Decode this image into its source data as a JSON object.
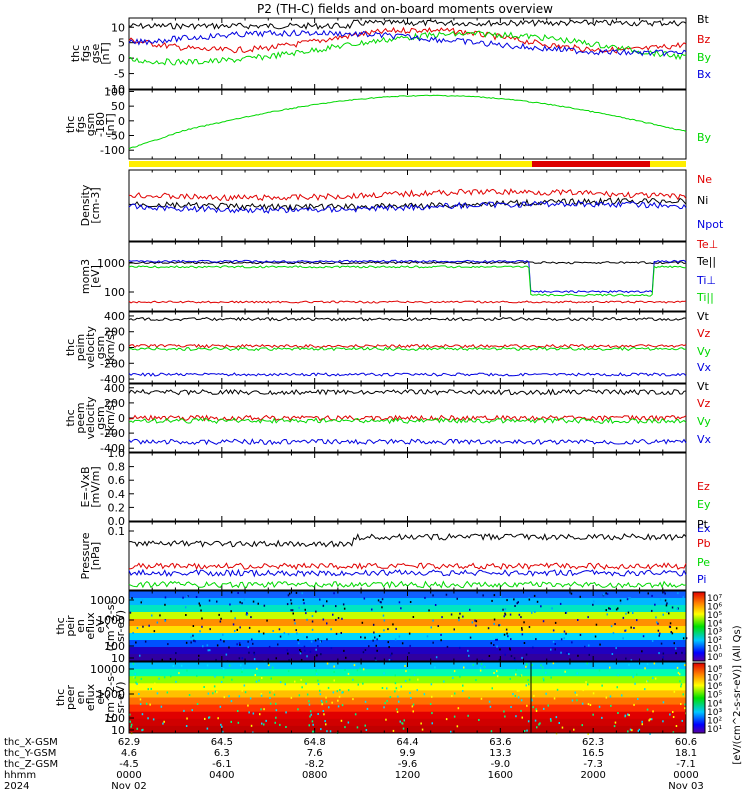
{
  "title": "P2 (TH-C) fields and on-board moments overview",
  "colors": {
    "black": "#000000",
    "red": "#e00000",
    "green": "#00d800",
    "blue": "#0000e0",
    "yellow": "#ffee00",
    "barred": "#dd0000"
  },
  "chart_data": [
    {
      "type": "line",
      "id": "fgs",
      "ylabel": [
        "thc",
        "fgs",
        "gse",
        "[nT]"
      ],
      "ylim": [
        -10,
        13
      ],
      "yticks": [
        10,
        5,
        0,
        -5,
        -10
      ],
      "series": [
        {
          "name": "Bt",
          "color": "black"
        },
        {
          "name": "Bz",
          "color": "red"
        },
        {
          "name": "By",
          "color": "green"
        },
        {
          "name": "Bx",
          "color": "blue"
        }
      ]
    },
    {
      "type": "line",
      "id": "fgs-gsm",
      "ylabel": [
        "thc",
        "fgs",
        "gsm",
        "-180",
        "[nT]"
      ],
      "ylim": [
        -130,
        105
      ],
      "yticks": [
        100,
        50,
        0,
        -50,
        -100
      ],
      "series": [
        {
          "name": "By",
          "color": "green"
        }
      ]
    },
    {
      "type": "line",
      "id": "density",
      "ylabel": [
        "Density",
        "[cm-3]"
      ],
      "series": [
        {
          "name": "Ne",
          "color": "red"
        },
        {
          "name": "Ni",
          "color": "black"
        },
        {
          "name": "Npot",
          "color": "blue"
        }
      ]
    },
    {
      "type": "line",
      "id": "temperature",
      "ylabel": [
        "mom3",
        "[eV]"
      ],
      "ytick_labels": [
        "1000",
        "100"
      ],
      "series": [
        {
          "name": "Te⊥",
          "color": "red"
        },
        {
          "name": "Te||",
          "color": "black"
        },
        {
          "name": "Ti⊥",
          "color": "blue"
        },
        {
          "name": "Ti||",
          "color": "green"
        }
      ]
    },
    {
      "type": "line",
      "id": "peim-velocity",
      "ylabel": [
        "thc",
        "peim",
        "velocity",
        "gsm",
        "[km/s]"
      ],
      "ylim": [
        -450,
        450
      ],
      "yticks": [
        400,
        200,
        0,
        -200,
        -400
      ],
      "series": [
        {
          "name": "Vt",
          "color": "black"
        },
        {
          "name": "Vz",
          "color": "red"
        },
        {
          "name": "Vy",
          "color": "green"
        },
        {
          "name": "Vx",
          "color": "blue"
        }
      ]
    },
    {
      "type": "line",
      "id": "peem-velocity",
      "ylabel": [
        "thc",
        "peem",
        "velocity",
        "gsm",
        "[km/s]"
      ],
      "ylim": [
        -450,
        450
      ],
      "yticks": [
        400,
        200,
        0,
        -200,
        -400
      ],
      "series": [
        {
          "name": "Vt",
          "color": "black"
        },
        {
          "name": "Vz",
          "color": "red"
        },
        {
          "name": "Vy",
          "color": "green"
        },
        {
          "name": "Vx",
          "color": "blue"
        }
      ]
    },
    {
      "type": "line",
      "id": "efield",
      "ylabel": [
        "E=-VxB",
        "[mV/m]"
      ],
      "ylim": [
        0.0,
        1.0
      ],
      "yticks": [
        1.0,
        0.8,
        0.6,
        0.4,
        0.2,
        0.0
      ],
      "ytick_labels": [
        "1.0",
        "0.8",
        "0.6",
        "0.4",
        "0.2",
        "0.0"
      ],
      "series": [
        {
          "name": "Ez",
          "color": "red"
        },
        {
          "name": "Ey",
          "color": "green"
        },
        {
          "name": "Ex",
          "color": "blue"
        }
      ]
    },
    {
      "type": "line",
      "id": "pressure",
      "ylabel": [
        "Pressure",
        "[nPa]"
      ],
      "ytick_labels": [
        "0.1"
      ],
      "series": [
        {
          "name": "Pt",
          "color": "black"
        },
        {
          "name": "Pb",
          "color": "red"
        },
        {
          "name": "Pe",
          "color": "green"
        },
        {
          "name": "Pi",
          "color": "blue"
        }
      ]
    },
    {
      "type": "heatmap",
      "id": "peir-spectrogram",
      "ylabel": [
        "thc",
        "peir",
        "en",
        "eflux",
        "eV",
        "(cm^2-s-",
        "sr-eV)"
      ],
      "ytick_labels": [
        "10000",
        "1000",
        "100",
        "10"
      ]
    },
    {
      "type": "heatmap",
      "id": "peer-spectrogram",
      "ylabel": [
        "thc",
        "peer",
        "en",
        "eflux",
        "eV",
        "(cm^2-s-",
        "sr-eV)"
      ],
      "ytick_labels": [
        "10000",
        "1000",
        "100",
        "10"
      ]
    }
  ],
  "colorbars": [
    {
      "labels": [
        "10⁷",
        "10⁶",
        "10⁵",
        "10⁴",
        "10³",
        "10²",
        "10¹",
        "10⁰"
      ]
    },
    {
      "labels": [
        "10⁸",
        "10⁷",
        "10⁶",
        "10⁵",
        "10⁴",
        "10³",
        "10²",
        "10¹"
      ]
    }
  ],
  "colorbar_label": "[eV/(cm^2-s-sr-eV)] (All Qs)",
  "xaxis": {
    "columns": [
      {
        "x": "62.9",
        "y": "4.6",
        "z": "-4.5",
        "hhmm": "0000",
        "date": "Nov 02"
      },
      {
        "x": "64.5",
        "y": "6.3",
        "z": "-6.1",
        "hhmm": "0400",
        "date": ""
      },
      {
        "x": "64.8",
        "y": "7.6",
        "z": "-8.2",
        "hhmm": "0800",
        "date": ""
      },
      {
        "x": "64.4",
        "y": "9.9",
        "z": "-9.6",
        "hhmm": "1200",
        "date": ""
      },
      {
        "x": "63.6",
        "y": "13.3",
        "z": "-9.0",
        "hhmm": "1600",
        "date": ""
      },
      {
        "x": "62.3",
        "y": "16.5",
        "z": "-7.3",
        "hhmm": "2000",
        "date": ""
      },
      {
        "x": "60.6",
        "y": "18.1",
        "z": "-7.1",
        "hhmm": "0000",
        "date": "Nov 03"
      }
    ],
    "row_labels": [
      "thc_X-GSM",
      "thc_Y-GSM",
      "thc_Z-GSM",
      "hhmm",
      "2024"
    ]
  }
}
